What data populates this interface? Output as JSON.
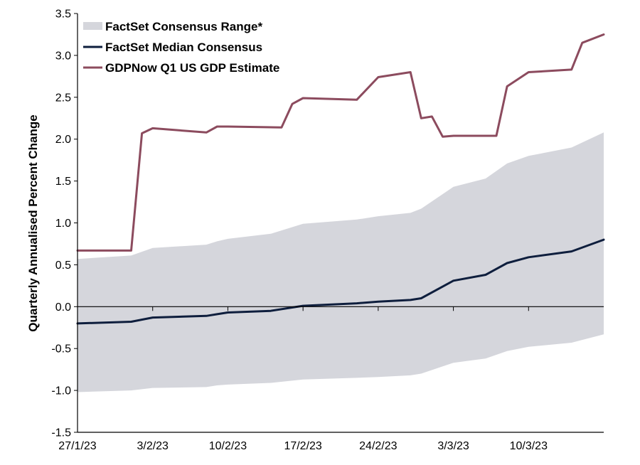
{
  "chart_data": {
    "type": "line",
    "title": "",
    "xlabel": "",
    "ylabel": "Quarterly Annualised Percent Change",
    "ylim": [
      -1.5,
      3.5
    ],
    "yticks": [
      -1.5,
      -1.0,
      -0.5,
      0.0,
      0.5,
      1.0,
      1.5,
      2.0,
      2.5,
      3.0,
      3.5
    ],
    "ytick_labels": [
      "-1.5",
      "-1.0",
      "-0.5",
      "0.0",
      "0.5",
      "1.0",
      "1.5",
      "2.0",
      "2.5",
      "3.0",
      "3.5"
    ],
    "xlim": [
      "2023-01-27",
      "2023-03-17"
    ],
    "xticks": [
      "2023-01-27",
      "2023-02-03",
      "2023-02-10",
      "2023-02-17",
      "2023-02-24",
      "2023-03-03",
      "2023-03-10"
    ],
    "xtick_labels": [
      "27/1/23",
      "3/2/23",
      "10/2/23",
      "17/2/23",
      "24/2/23",
      "3/3/23",
      "10/3/23"
    ],
    "legend_position": "top-left",
    "grid": false,
    "series": [
      {
        "name": "FactSet Consensus Range*",
        "kind": "band",
        "color": "#d5d6dc",
        "x": [
          "2023-01-27",
          "2023-02-01",
          "2023-02-03",
          "2023-02-08",
          "2023-02-09",
          "2023-02-10",
          "2023-02-14",
          "2023-02-17",
          "2023-02-22",
          "2023-02-24",
          "2023-02-27",
          "2023-02-28",
          "2023-03-03",
          "2023-03-06",
          "2023-03-08",
          "2023-03-10",
          "2023-03-14",
          "2023-03-17"
        ],
        "upper": [
          0.57,
          0.61,
          0.7,
          0.74,
          0.78,
          0.81,
          0.87,
          0.99,
          1.04,
          1.08,
          1.12,
          1.17,
          1.43,
          1.53,
          1.71,
          1.8,
          1.9,
          2.08
        ],
        "lower": [
          -1.02,
          -1.0,
          -0.97,
          -0.96,
          -0.94,
          -0.93,
          -0.91,
          -0.87,
          -0.85,
          -0.84,
          -0.82,
          -0.8,
          -0.67,
          -0.62,
          -0.53,
          -0.48,
          -0.43,
          -0.33
        ]
      },
      {
        "name": "FactSet Median Consensus",
        "kind": "line",
        "color": "#0e1e3d",
        "x": [
          "2023-01-27",
          "2023-02-01",
          "2023-02-03",
          "2023-02-08",
          "2023-02-09",
          "2023-02-10",
          "2023-02-14",
          "2023-02-17",
          "2023-02-22",
          "2023-02-24",
          "2023-02-27",
          "2023-02-28",
          "2023-03-03",
          "2023-03-06",
          "2023-03-08",
          "2023-03-10",
          "2023-03-14",
          "2023-03-17"
        ],
        "values": [
          -0.2,
          -0.18,
          -0.13,
          -0.11,
          -0.09,
          -0.07,
          -0.05,
          0.01,
          0.04,
          0.06,
          0.08,
          0.1,
          0.31,
          0.38,
          0.52,
          0.59,
          0.66,
          0.8
        ]
      },
      {
        "name": "GDPNow Q1 US GDP Estimate",
        "kind": "line",
        "color": "#8c4b5e",
        "x": [
          "2023-01-27",
          "2023-02-01",
          "2023-02-02",
          "2023-02-03",
          "2023-02-08",
          "2023-02-09",
          "2023-02-10",
          "2023-02-15",
          "2023-02-16",
          "2023-02-17",
          "2023-02-22",
          "2023-02-24",
          "2023-02-27",
          "2023-02-28",
          "2023-03-01",
          "2023-03-02",
          "2023-03-03",
          "2023-03-07",
          "2023-03-08",
          "2023-03-10",
          "2023-03-14",
          "2023-03-15",
          "2023-03-17"
        ],
        "values": [
          0.67,
          0.67,
          2.07,
          2.13,
          2.08,
          2.15,
          2.15,
          2.14,
          2.42,
          2.49,
          2.47,
          2.74,
          2.8,
          2.25,
          2.27,
          2.03,
          2.04,
          2.04,
          2.63,
          2.8,
          2.83,
          3.15,
          3.25
        ]
      }
    ]
  }
}
